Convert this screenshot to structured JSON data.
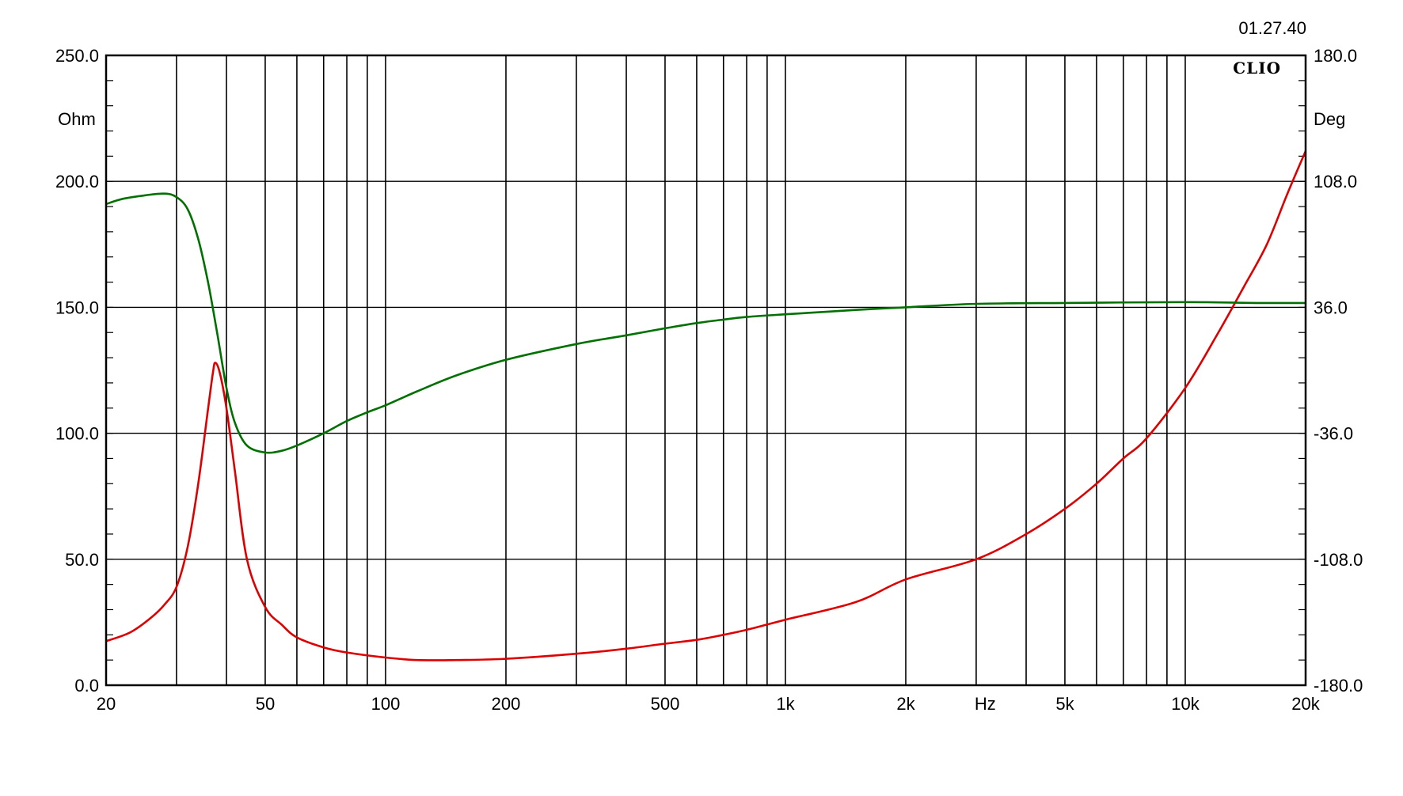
{
  "header": {
    "timestamp": "01.27.40",
    "brand": "CLIO"
  },
  "chart_data": {
    "type": "line",
    "x_scale": "log",
    "xlim": [
      20,
      20000
    ],
    "x_axis_label": "Hz",
    "x_tick_labels": [
      {
        "value": 20,
        "label": "20"
      },
      {
        "value": 50,
        "label": "50"
      },
      {
        "value": 100,
        "label": "100"
      },
      {
        "value": 200,
        "label": "200"
      },
      {
        "value": 500,
        "label": "500"
      },
      {
        "value": 1000,
        "label": "1k"
      },
      {
        "value": 2000,
        "label": "2k"
      },
      {
        "value": 5000,
        "label": "5k"
      },
      {
        "value": 10000,
        "label": "10k"
      },
      {
        "value": 20000,
        "label": "20k"
      }
    ],
    "x_grid_values": [
      20,
      30,
      40,
      50,
      60,
      70,
      80,
      90,
      100,
      200,
      300,
      400,
      500,
      600,
      700,
      800,
      900,
      1000,
      2000,
      3000,
      4000,
      5000,
      6000,
      7000,
      8000,
      9000,
      10000,
      20000
    ],
    "y_left": {
      "unit": "Ohm",
      "ylim": [
        0,
        250
      ],
      "ticks": [
        {
          "value": 0,
          "label": "0.0"
        },
        {
          "value": 50,
          "label": "50.0"
        },
        {
          "value": 100,
          "label": "100.0"
        },
        {
          "value": 150,
          "label": "150.0"
        },
        {
          "value": 200,
          "label": "200.0"
        },
        {
          "value": 250,
          "label": "250.0"
        }
      ]
    },
    "y_right": {
      "unit": "Deg",
      "ylim": [
        -180,
        180
      ],
      "ticks": [
        {
          "value": -180,
          "label": "-180.0"
        },
        {
          "value": -108,
          "label": "-108.0"
        },
        {
          "value": -36,
          "label": "-36.0"
        },
        {
          "value": 36,
          "label": "36.0"
        },
        {
          "value": 108,
          "label": "108.0"
        },
        {
          "value": 180,
          "label": "180.0"
        }
      ]
    },
    "grid": true,
    "series": [
      {
        "axis": "left",
        "color": "#dd0000",
        "points": [
          [
            20,
            17.5
          ],
          [
            23,
            21
          ],
          [
            26,
            27
          ],
          [
            28,
            32
          ],
          [
            30,
            39
          ],
          [
            32,
            55
          ],
          [
            34,
            80
          ],
          [
            36,
            110
          ],
          [
            37,
            124
          ],
          [
            37.5,
            128
          ],
          [
            38.5,
            124
          ],
          [
            40,
            110
          ],
          [
            42,
            85
          ],
          [
            45,
            50
          ],
          [
            50,
            31
          ],
          [
            55,
            24
          ],
          [
            60,
            19
          ],
          [
            70,
            15
          ],
          [
            80,
            13
          ],
          [
            100,
            11
          ],
          [
            120,
            10
          ],
          [
            150,
            10
          ],
          [
            200,
            10.5
          ],
          [
            300,
            12.5
          ],
          [
            400,
            14.5
          ],
          [
            500,
            16.5
          ],
          [
            600,
            18
          ],
          [
            700,
            20
          ],
          [
            800,
            22
          ],
          [
            1000,
            26
          ],
          [
            1500,
            33
          ],
          [
            2000,
            42
          ],
          [
            3000,
            50
          ],
          [
            4000,
            60
          ],
          [
            5000,
            70
          ],
          [
            6000,
            80
          ],
          [
            7000,
            90
          ],
          [
            8000,
            98
          ],
          [
            10000,
            118
          ],
          [
            12000,
            139
          ],
          [
            14000,
            158
          ],
          [
            16000,
            175
          ],
          [
            18000,
            195
          ],
          [
            20000,
            212
          ]
        ]
      },
      {
        "axis": "right",
        "color": "#007000",
        "points": [
          [
            20,
            95
          ],
          [
            22,
            98
          ],
          [
            25,
            100
          ],
          [
            28,
            101
          ],
          [
            30,
            99
          ],
          [
            32,
            92
          ],
          [
            34,
            75
          ],
          [
            36,
            50
          ],
          [
            38,
            20
          ],
          [
            40,
            -10
          ],
          [
            42,
            -30
          ],
          [
            45,
            -43
          ],
          [
            50,
            -47
          ],
          [
            55,
            -46
          ],
          [
            60,
            -43
          ],
          [
            70,
            -36
          ],
          [
            80,
            -29
          ],
          [
            90,
            -24
          ],
          [
            100,
            -20
          ],
          [
            120,
            -12
          ],
          [
            150,
            -3
          ],
          [
            200,
            6
          ],
          [
            300,
            15
          ],
          [
            400,
            20
          ],
          [
            500,
            24
          ],
          [
            600,
            27
          ],
          [
            700,
            29
          ],
          [
            800,
            30.5
          ],
          [
            1000,
            32
          ],
          [
            1500,
            34.5
          ],
          [
            2000,
            36
          ],
          [
            3000,
            38
          ],
          [
            5000,
            38.5
          ],
          [
            10000,
            39
          ],
          [
            15000,
            38.5
          ],
          [
            20000,
            38.5
          ]
        ]
      }
    ]
  }
}
